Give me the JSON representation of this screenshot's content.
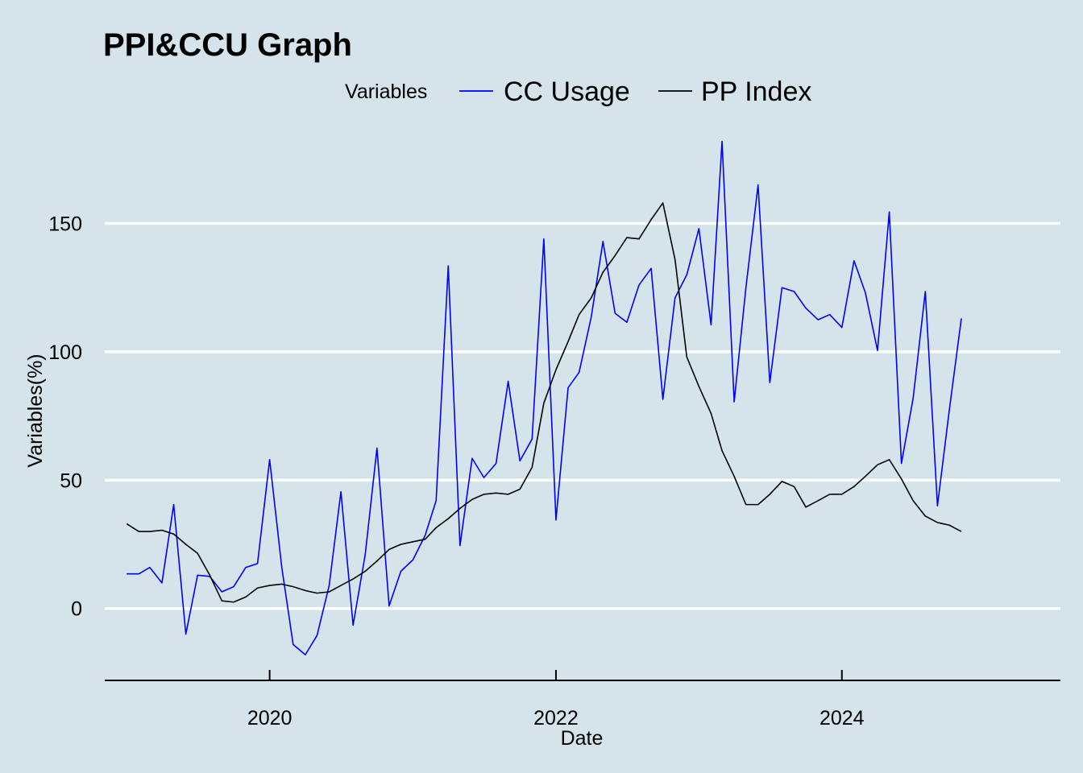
{
  "chart_data": {
    "type": "line",
    "title": "PPI&CCU Graph",
    "xlabel": "Date",
    "ylabel": "Variables(%)",
    "legend_title": "Variables",
    "legend_position": "top",
    "grid": {
      "major_y": true,
      "major_x": false
    },
    "xlim": [
      "2018-11-06",
      "2025-07-12"
    ],
    "ylim": [
      -28,
      190
    ],
    "x_ticks": [
      {
        "date": "2020-01-01",
        "label": "2020"
      },
      {
        "date": "2022-01-01",
        "label": "2022"
      },
      {
        "date": "2024-01-01",
        "label": "2024"
      }
    ],
    "y_ticks": [
      {
        "value": 0,
        "label": "0"
      },
      {
        "value": 50,
        "label": "50"
      },
      {
        "value": 100,
        "label": "100"
      },
      {
        "value": 150,
        "label": "150"
      }
    ],
    "x": [
      "2019-01-01",
      "2019-02-01",
      "2019-03-01",
      "2019-04-01",
      "2019-05-01",
      "2019-06-01",
      "2019-07-01",
      "2019-08-01",
      "2019-09-01",
      "2019-10-01",
      "2019-11-01",
      "2019-12-01",
      "2020-01-01",
      "2020-02-01",
      "2020-03-01",
      "2020-04-01",
      "2020-05-01",
      "2020-06-01",
      "2020-07-01",
      "2020-08-01",
      "2020-09-01",
      "2020-10-01",
      "2020-11-01",
      "2020-12-01",
      "2021-01-01",
      "2021-02-01",
      "2021-03-01",
      "2021-04-01",
      "2021-05-01",
      "2021-06-01",
      "2021-07-01",
      "2021-08-01",
      "2021-09-01",
      "2021-10-01",
      "2021-11-01",
      "2021-12-01",
      "2022-01-01",
      "2022-02-01",
      "2022-03-01",
      "2022-04-01",
      "2022-05-01",
      "2022-06-01",
      "2022-07-01",
      "2022-08-01",
      "2022-09-01",
      "2022-10-01",
      "2022-11-01",
      "2022-12-01",
      "2023-01-01",
      "2023-02-01",
      "2023-03-01",
      "2023-04-01",
      "2023-05-01",
      "2023-06-01",
      "2023-07-01",
      "2023-08-01",
      "2023-09-01",
      "2023-10-01",
      "2023-11-01",
      "2023-12-01",
      "2024-01-01",
      "2024-02-01",
      "2024-03-01",
      "2024-04-01",
      "2024-05-01",
      "2024-06-01",
      "2024-07-01",
      "2024-08-01",
      "2024-09-01",
      "2024-10-01",
      "2024-11-01"
    ],
    "series": [
      {
        "name": "CC Usage",
        "color": "#0000ff",
        "values": [
          13.5,
          13.5,
          16,
          10,
          40.5,
          -10,
          13,
          12.5,
          6.5,
          8.5,
          16,
          17.5,
          58,
          16,
          -14,
          -18,
          -10.5,
          9,
          45.5,
          -6.5,
          21,
          62.5,
          1,
          14.5,
          19,
          28.5,
          42,
          133.5,
          24.5,
          58.5,
          51,
          56.5,
          88.5,
          57.5,
          66,
          144,
          34.5,
          86,
          92,
          113.5,
          143,
          115,
          111.5,
          126,
          132.5,
          81.5,
          121,
          130,
          148,
          110.5,
          182,
          80.5,
          125,
          165,
          88,
          125,
          123.5,
          117,
          112.5,
          114.5,
          109.5,
          135.5,
          123,
          100.5,
          154.5,
          56.5,
          82,
          123.5,
          40,
          77,
          113
        ]
      },
      {
        "name": "PP Index",
        "color": "#000000",
        "values": [
          33,
          30,
          30,
          30.5,
          29,
          25,
          21.5,
          13,
          3,
          2.5,
          4.5,
          8,
          9,
          9.5,
          8.5,
          7,
          6,
          6.5,
          9,
          11.5,
          14.5,
          18.5,
          23,
          25,
          26,
          27,
          31.5,
          35,
          39,
          42.5,
          44.5,
          45,
          44.5,
          46.5,
          55,
          80,
          93,
          104,
          114.5,
          121,
          131,
          137.5,
          144.5,
          144,
          151.5,
          158,
          136,
          98,
          86.5,
          76,
          61.5,
          51.5,
          40.5,
          40.5,
          44.5,
          49.5,
          47.5,
          39.5,
          42,
          44.5,
          44.5,
          47.5,
          51.5,
          56,
          58,
          50.5,
          42,
          36,
          33.5,
          32.5,
          30
        ]
      }
    ]
  }
}
